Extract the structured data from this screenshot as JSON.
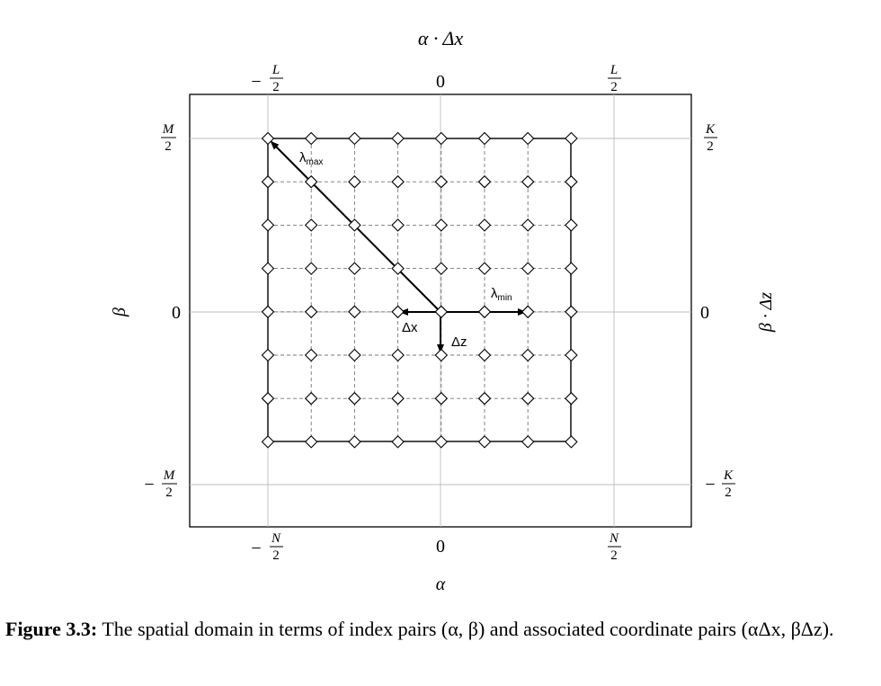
{
  "top_axis_label": "α · Δx",
  "left_axis_label": "β",
  "right_axis_label": "β · Δz",
  "bottom_axis_label": "α",
  "top_ticks": [
    {
      "sign": "−",
      "num": "L",
      "den": "2"
    },
    {
      "value": "0"
    },
    {
      "num": "L",
      "den": "2"
    }
  ],
  "bottom_ticks": [
    {
      "sign": "−",
      "num": "N",
      "den": "2"
    },
    {
      "value": "0"
    },
    {
      "num": "N",
      "den": "2"
    }
  ],
  "left_ticks": [
    {
      "num": "M",
      "den": "2"
    },
    {
      "value": "0"
    },
    {
      "sign": "−",
      "num": "M",
      "den": "2"
    }
  ],
  "right_ticks": [
    {
      "num": "K",
      "den": "2"
    },
    {
      "value": "0"
    },
    {
      "sign": "−",
      "num": "K",
      "den": "2"
    }
  ],
  "arrows": {
    "lambda_max": "λ",
    "lambda_max_sub": "max",
    "lambda_min": "λ",
    "lambda_min_sub": "min",
    "dx": "Δx",
    "dz": "Δz"
  },
  "caption": {
    "label": "Figure 3.3:",
    "text": "The spatial domain in terms of index pairs (α, β) and associated coordinate pairs (αΔx, βΔz)."
  }
}
